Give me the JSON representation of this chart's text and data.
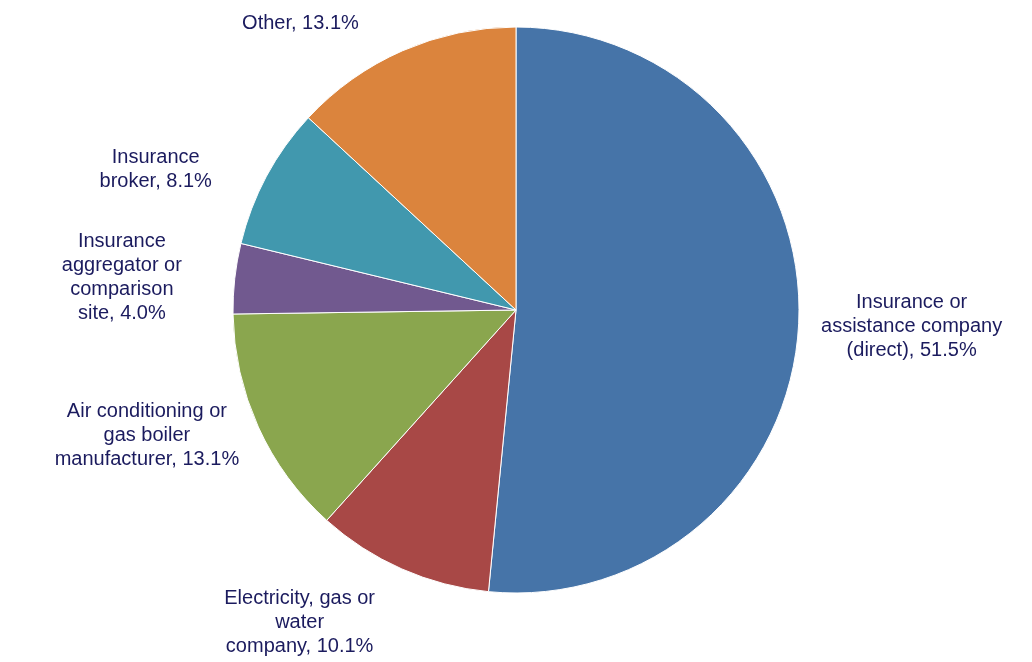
{
  "chart_data": {
    "type": "pie",
    "categories": [
      "Insurance or assistance company (direct)",
      "Electricity, gas or water company",
      "Air conditioning or gas boiler manufacturer",
      "Insurance aggregator or comparison site",
      "Insurance broker",
      "Other"
    ],
    "values": [
      51.5,
      10.1,
      13.1,
      4.0,
      8.1,
      13.1
    ],
    "value_labels": [
      "51.5%",
      "10.1%",
      "13.1%",
      "4.0%",
      "8.1%",
      "13.1%"
    ],
    "colors": [
      "#4674a8",
      "#a84846",
      "#8aa64e",
      "#71598f",
      "#4198ae",
      "#db843d"
    ],
    "legend": false
  }
}
